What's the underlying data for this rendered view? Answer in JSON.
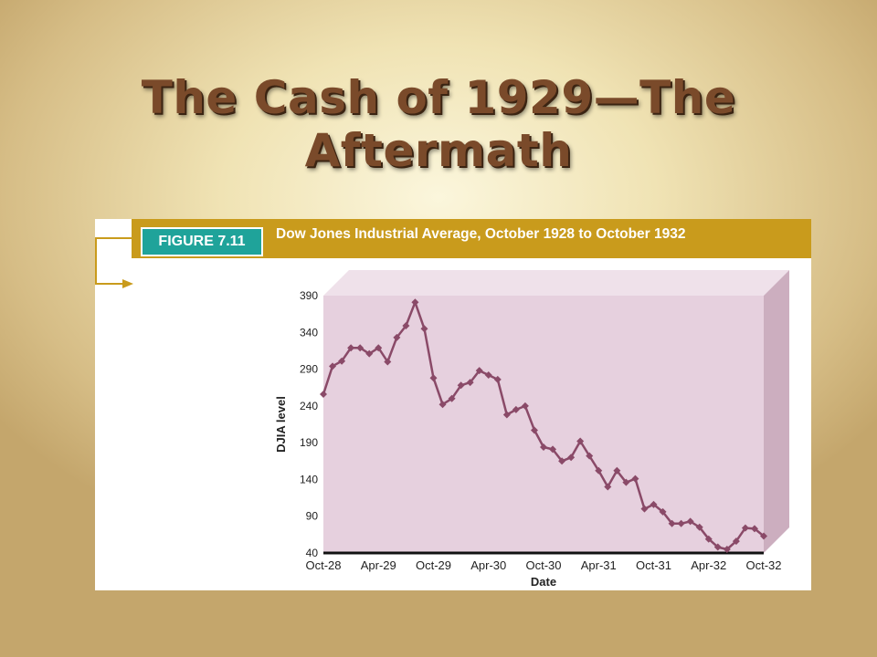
{
  "slide": {
    "title": "The Cash of 1929—The Aftermath"
  },
  "figure": {
    "tag": "FIGURE 7.11",
    "caption": "Dow Jones Industrial Average, October 1928 to October 1932"
  },
  "colors": {
    "header_bar": "#c99b1c",
    "figure_tag": "#1fa39a",
    "plot_fill": "#e6d0de",
    "series_line": "#8a4a68"
  },
  "chart_data": {
    "type": "line",
    "title": "Dow Jones Industrial Average, October 1928 to October 1932",
    "xlabel": "Date",
    "ylabel": "DJIA level",
    "ylim": [
      40,
      390
    ],
    "yticks": [
      40,
      90,
      140,
      190,
      240,
      290,
      340,
      390
    ],
    "xticks": [
      "Oct-28",
      "Apr-29",
      "Oct-29",
      "Apr-30",
      "Oct-30",
      "Apr-31",
      "Oct-31",
      "Apr-32",
      "Oct-32"
    ],
    "grid": false,
    "series": [
      {
        "values": [
          256,
          294,
          301,
          319,
          319,
          311,
          319,
          300,
          333,
          349,
          381,
          345,
          278,
          242,
          250,
          268,
          272,
          288,
          282,
          276,
          228,
          235,
          240,
          207,
          184,
          181,
          165,
          170,
          192,
          172,
          152,
          130,
          152,
          136,
          141,
          100,
          106,
          96,
          80,
          80,
          83,
          75,
          59,
          48,
          45,
          56,
          74,
          73,
          63
        ]
      }
    ]
  }
}
